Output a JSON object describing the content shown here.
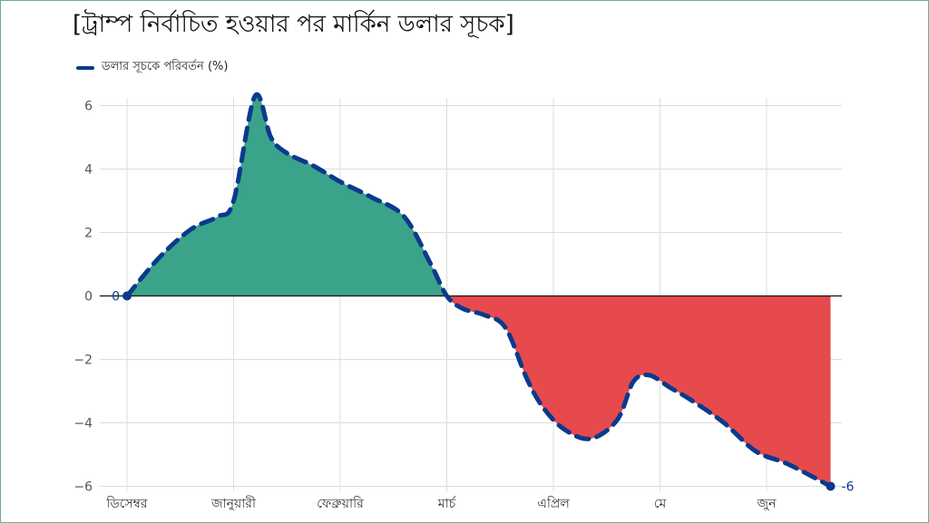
{
  "chart_data": {
    "type": "area",
    "title": "[ট্রাম্প নির্বাচিত হওয়ার পর মার্কিন ডলার সূচক]",
    "xlabel": "",
    "ylabel": "",
    "ylim": [
      -6,
      6.5
    ],
    "yticks": [
      6,
      4,
      2,
      0,
      -2,
      -4,
      -6
    ],
    "ytick_labels": [
      "6",
      "4",
      "2",
      "0",
      "−2",
      "−4",
      "−6"
    ],
    "categories": [
      "ডিসেম্বর",
      "জানুয়ারী",
      "ফেব্রুয়ারি",
      "মার্চ",
      "এপ্রিল",
      "মে",
      "জুন"
    ],
    "legend": "top-left",
    "grid": true,
    "series": [
      {
        "name": "ডলার সূচকে পরিবর্তন (%)",
        "x": [
          0,
          0.3,
          0.6,
          0.85,
          1.0,
          1.2,
          1.35,
          1.5,
          1.75,
          2.0,
          2.3,
          2.6,
          2.85,
          3.0,
          3.15,
          3.35,
          3.55,
          3.75,
          3.9,
          4.1,
          4.35,
          4.6,
          4.75,
          4.9,
          5.1,
          5.3,
          5.6,
          5.9,
          6.2,
          6.6
        ],
        "values": [
          0,
          1.2,
          2.1,
          2.5,
          3.0,
          6.3,
          5.0,
          4.5,
          4.1,
          3.6,
          3.1,
          2.5,
          1.0,
          0.0,
          -0.4,
          -0.6,
          -1.0,
          -2.6,
          -3.5,
          -4.2,
          -4.5,
          -3.9,
          -2.7,
          -2.5,
          -2.9,
          -3.3,
          -4.0,
          -4.9,
          -5.3,
          -6.0
        ]
      }
    ],
    "annotations": [
      {
        "x": 0,
        "y": 0,
        "text": "0"
      },
      {
        "x": 6.6,
        "y": -6,
        "text": "-6"
      }
    ],
    "colors": {
      "line": "#0a3a8c",
      "positive_fill": "#3aa38a",
      "negative_fill": "#e64a4d",
      "grid": "#dddddd",
      "zero_line": "#111111"
    }
  }
}
